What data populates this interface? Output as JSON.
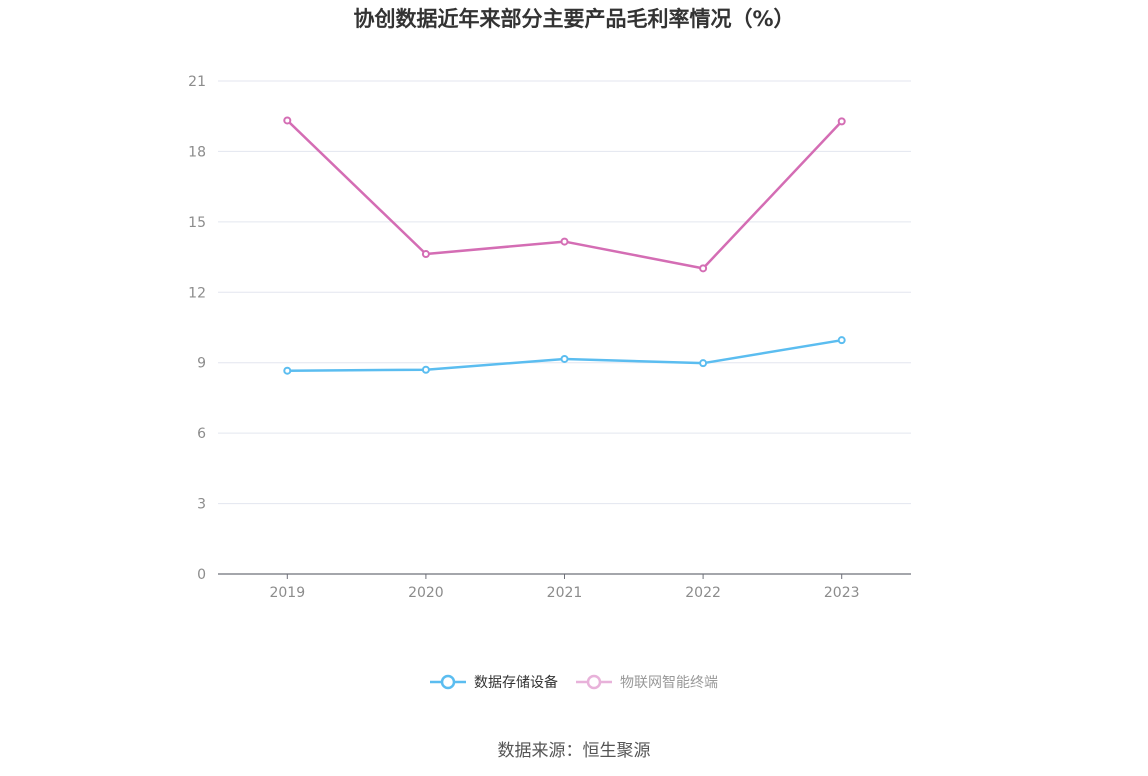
{
  "title": "协创数据近年来部分主要产品毛利率情况（%）",
  "source": "数据来源：恒生聚源",
  "chart_data": {
    "type": "line",
    "title": "协创数据近年来部分主要产品毛利率情况（%）",
    "categories": [
      "2019",
      "2020",
      "2021",
      "2022",
      "2023"
    ],
    "ylim": [
      0,
      21
    ],
    "yticks": [
      0,
      3,
      6,
      9,
      12,
      15,
      18,
      21
    ],
    "grid": true,
    "legend_position": "bottom",
    "series": [
      {
        "name": "数据存储设备",
        "color": "#5bbdf0",
        "values": [
          8.66,
          8.7,
          9.16,
          8.98,
          9.96
        ]
      },
      {
        "name": "物联网智能终端",
        "color": "#d46db4",
        "values": [
          19.32,
          13.63,
          14.16,
          13.02,
          19.28
        ]
      }
    ]
  }
}
